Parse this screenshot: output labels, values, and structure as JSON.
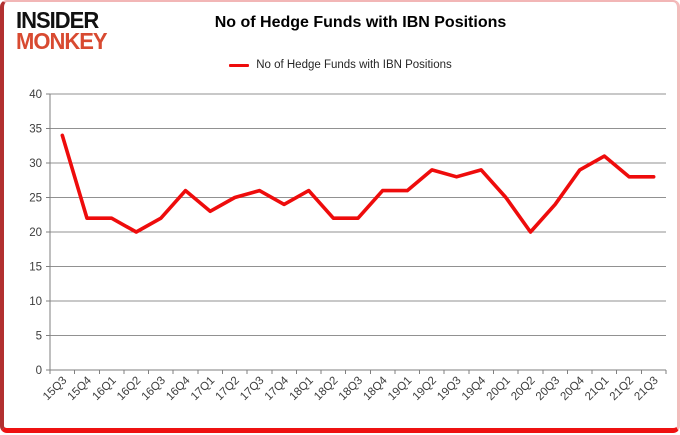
{
  "logo": {
    "line1": "INSIDER",
    "line2": "MONKEY",
    "accent_color": "#d84a31"
  },
  "header": {
    "title": "No of Hedge Funds with IBN Positions"
  },
  "legend": {
    "label": "No of Hedge Funds with IBN Positions",
    "line_color": "#ee0c0c"
  },
  "chart_data": {
    "type": "line",
    "title": "No of Hedge Funds with IBN Positions",
    "categories": [
      "15Q3",
      "15Q4",
      "16Q1",
      "16Q2",
      "16Q3",
      "16Q4",
      "17Q1",
      "17Q2",
      "17Q3",
      "17Q4",
      "18Q1",
      "18Q2",
      "18Q3",
      "18Q4",
      "19Q1",
      "19Q2",
      "19Q3",
      "19Q4",
      "20Q1",
      "20Q2",
      "20Q3",
      "20Q4",
      "21Q1",
      "21Q2",
      "21Q3"
    ],
    "series": [
      {
        "name": "No of Hedge Funds with IBN Positions",
        "color": "#ee0c0c",
        "values": [
          34,
          22,
          22,
          20,
          22,
          26,
          23,
          25,
          26,
          24,
          26,
          22,
          22,
          26,
          26,
          29,
          28,
          29,
          25,
          20,
          24,
          29,
          31,
          28,
          28
        ]
      }
    ],
    "xlabel": "",
    "ylabel": "",
    "ylim": [
      0,
      40
    ],
    "yticks": [
      0,
      5,
      10,
      15,
      20,
      25,
      30,
      35,
      40
    ],
    "grid": true,
    "legend_position": "top-center",
    "grid_color": "#919191",
    "axis_color": "#7f7f7f",
    "tick_label_color": "#3d3d3d"
  }
}
